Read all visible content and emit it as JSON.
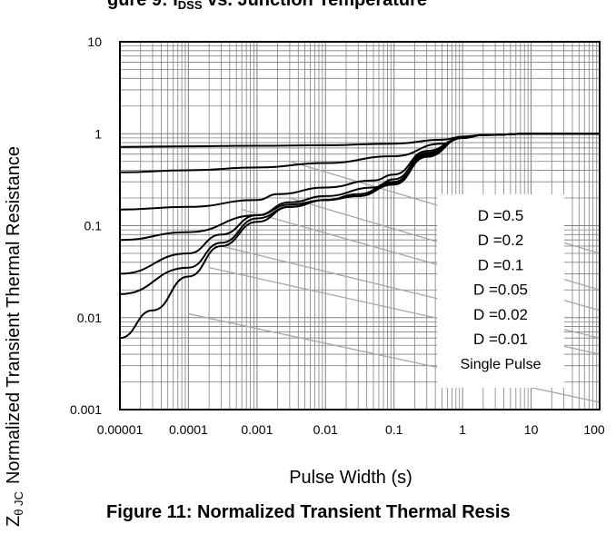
{
  "top_caption_partial": "gure 9:   I",
  "top_caption_partial_b": "DSS",
  "top_caption_partial_c": "   vs. Junction Temperature",
  "caption": "Figure 11: Normalized Transient  Thermal Resis",
  "chart_data": {
    "type": "line",
    "title": "",
    "xlabel": "Pulse Width (s)",
    "ylabel_symbol": "Z",
    "ylabel_subscript": "θ JC",
    "ylabel": "Normalized Transient  Thermal Resistance",
    "x_scale": "log",
    "y_scale": "log",
    "xlim": [
      1e-05,
      100
    ],
    "ylim": [
      0.001,
      10
    ],
    "x_tick_labels": [
      "0.00001",
      "0.0001",
      "0.001",
      "0.01",
      "0.1",
      "1",
      "10",
      "100"
    ],
    "y_tick_labels": [
      "10",
      "1",
      "0.1",
      "0.01",
      "0.001"
    ],
    "x_ticks": [
      1e-05,
      0.0001,
      0.001,
      0.01,
      0.1,
      1,
      10,
      100
    ],
    "y_ticks": [
      10,
      1,
      0.1,
      0.01,
      0.001
    ],
    "grid": true,
    "legend_placement": "center-right",
    "legend": [
      "D =0.5",
      "D =0.2",
      "D =0.1",
      "D =0.05",
      "D =0.02",
      "D =0.01",
      "Single Pulse"
    ],
    "series": [
      {
        "name": "D =0.5",
        "x": [
          1e-05,
          0.0001,
          0.001,
          0.01,
          0.1,
          0.5,
          1,
          2,
          10,
          100
        ],
        "y": [
          0.72,
          0.73,
          0.74,
          0.75,
          0.78,
          0.86,
          0.93,
          0.97,
          1.0,
          1.0
        ]
      },
      {
        "name": "D =0.2",
        "x": [
          1e-05,
          0.0001,
          0.001,
          0.01,
          0.1,
          0.5,
          1,
          2,
          10,
          100
        ],
        "y": [
          0.38,
          0.4,
          0.43,
          0.48,
          0.57,
          0.78,
          0.9,
          0.97,
          1.0,
          1.0
        ]
      },
      {
        "name": "D =0.1",
        "x": [
          1e-05,
          0.0001,
          0.001,
          0.002,
          0.01,
          0.05,
          0.1,
          0.3,
          1,
          2,
          10,
          100
        ],
        "y": [
          0.15,
          0.16,
          0.19,
          0.22,
          0.26,
          0.31,
          0.36,
          0.65,
          0.9,
          0.97,
          1.0,
          1.0
        ]
      },
      {
        "name": "D =0.05",
        "x": [
          1e-05,
          0.0001,
          0.001,
          0.003,
          0.01,
          0.05,
          0.1,
          0.3,
          1,
          2,
          10,
          100
        ],
        "y": [
          0.07,
          0.085,
          0.13,
          0.18,
          0.21,
          0.26,
          0.32,
          0.62,
          0.9,
          0.97,
          1.0,
          1.0
        ]
      },
      {
        "name": "D =0.02",
        "x": [
          1e-05,
          0.0001,
          0.0003,
          0.001,
          0.003,
          0.01,
          0.03,
          0.1,
          0.3,
          1,
          2,
          10,
          100
        ],
        "y": [
          0.03,
          0.05,
          0.08,
          0.13,
          0.17,
          0.19,
          0.22,
          0.3,
          0.6,
          0.9,
          0.97,
          1.0,
          1.0
        ]
      },
      {
        "name": "D =0.01",
        "x": [
          1e-05,
          0.0001,
          0.0003,
          0.001,
          0.003,
          0.01,
          0.03,
          0.1,
          0.3,
          1,
          2,
          10,
          100
        ],
        "y": [
          0.018,
          0.035,
          0.065,
          0.12,
          0.16,
          0.19,
          0.21,
          0.29,
          0.58,
          0.9,
          0.97,
          1.0,
          1.0
        ]
      },
      {
        "name": "Single Pulse",
        "x": [
          1e-05,
          3e-05,
          0.0001,
          0.0003,
          0.001,
          0.003,
          0.01,
          0.03,
          0.1,
          0.3,
          1,
          2,
          10,
          100
        ],
        "y": [
          0.006,
          0.012,
          0.028,
          0.06,
          0.11,
          0.16,
          0.19,
          0.21,
          0.28,
          0.56,
          0.9,
          0.97,
          1.0,
          1.0
        ]
      }
    ],
    "load_lines": [
      {
        "x": [
          0.003,
          100
        ],
        "y": [
          0.5,
          0.05
        ]
      },
      {
        "x": [
          0.003,
          100
        ],
        "y": [
          0.2,
          0.02
        ]
      },
      {
        "x": [
          0.0006,
          100
        ],
        "y": [
          0.15,
          0.012
        ]
      },
      {
        "x": [
          0.0003,
          100
        ],
        "y": [
          0.06,
          0.006
        ]
      },
      {
        "x": [
          0.0002,
          100
        ],
        "y": [
          0.035,
          0.004
        ]
      },
      {
        "x": [
          0.0001,
          100
        ],
        "y": [
          0.011,
          0.0012
        ]
      }
    ],
    "colors": {
      "series": "#000000",
      "load_line": "#a6a6a6",
      "grid": "#808080",
      "axis": "#000000"
    }
  }
}
